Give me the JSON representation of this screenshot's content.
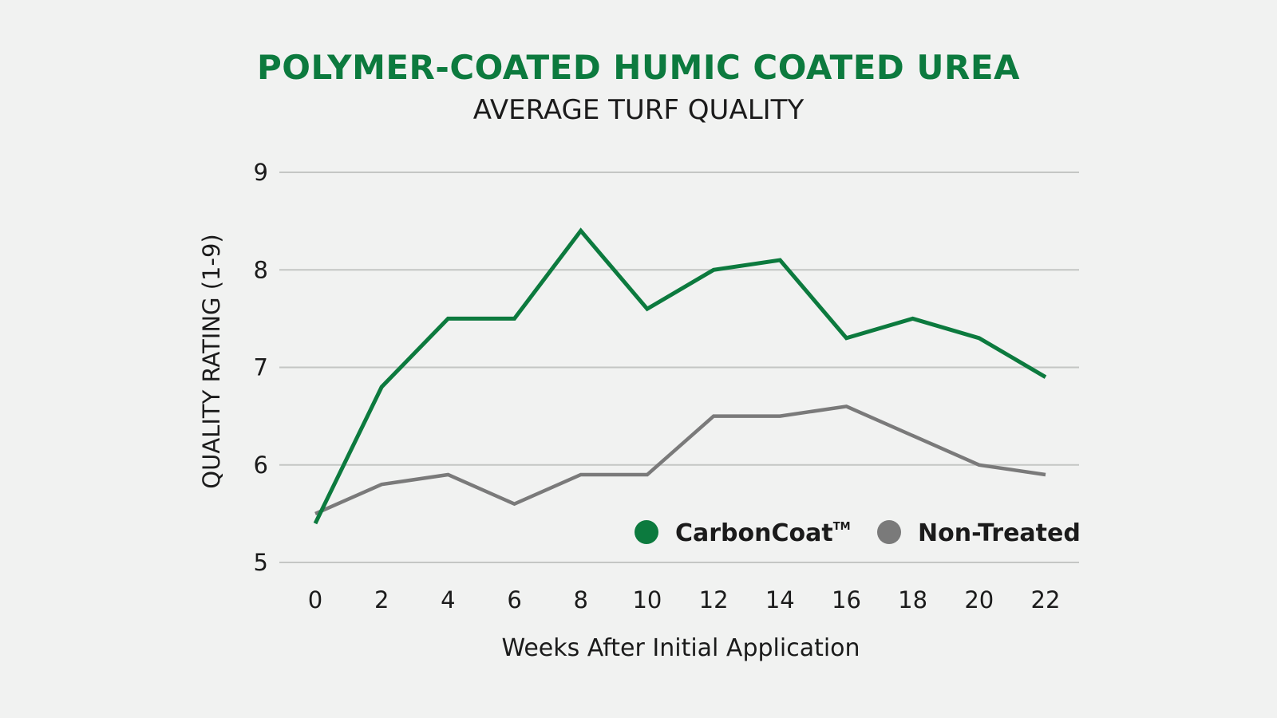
{
  "chart_data": {
    "type": "line",
    "title": "POLYMER-COATED HUMIC COATED UREA",
    "subtitle": "AVERAGE TURF QUALITY",
    "xlabel": "Weeks After Initial Application",
    "ylabel": "QUALITY RATING (1-9)",
    "x": [
      0,
      2,
      4,
      6,
      8,
      10,
      12,
      14,
      16,
      18,
      20,
      22
    ],
    "x_tick_labels": [
      "0",
      "2",
      "4",
      "6",
      "8",
      "10",
      "12",
      "14",
      "16",
      "18",
      "20",
      "22"
    ],
    "ylim": [
      5,
      9
    ],
    "y_ticks": [
      5,
      6,
      7,
      8,
      9
    ],
    "grid": true,
    "legend_position": "bottom-right",
    "series": [
      {
        "name": "CarbonCoat",
        "name_suffix": "TM",
        "color": "#0c7a3e",
        "values": [
          5.4,
          6.8,
          7.5,
          7.5,
          8.4,
          7.6,
          8.0,
          8.1,
          7.3,
          7.5,
          7.3,
          6.9
        ]
      },
      {
        "name": "Non-Treated",
        "name_suffix": "",
        "color": "#7a7a7a",
        "values": [
          5.5,
          5.8,
          5.9,
          5.6,
          5.9,
          5.9,
          6.5,
          6.5,
          6.6,
          6.3,
          6.0,
          5.9
        ]
      }
    ]
  }
}
